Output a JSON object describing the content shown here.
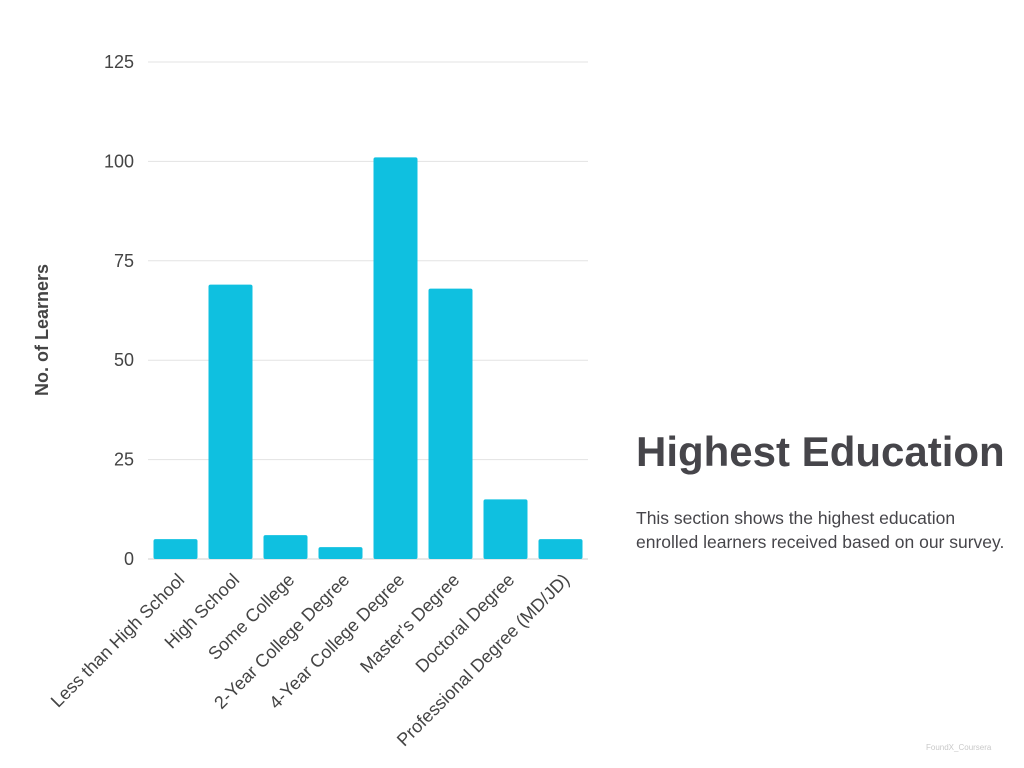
{
  "chart_data": {
    "type": "bar",
    "categories": [
      "Less than High School",
      "High School",
      "Some College",
      "2-Year College Degree",
      "4-Year College Degree",
      "Master's Degree",
      "Doctoral Degree",
      "Professional Degree (MD/JD)"
    ],
    "values": [
      5,
      69,
      6,
      3,
      101,
      68,
      15,
      5
    ],
    "ylabel": "No. of Learners",
    "xlabel": "",
    "ylim": [
      0,
      125
    ],
    "yticks": [
      "0",
      "25",
      "50",
      "75",
      "100",
      "125"
    ],
    "grid": true,
    "bar_color": "#0fc0e0"
  },
  "side": {
    "title": "Highest Education",
    "description": "This section shows the highest education enrolled learners received based on our survey."
  },
  "watermark": "FoundX_Coursera",
  "colors": {
    "bar": "#0fc0e0",
    "title_text": "#46454a",
    "tick_text": "#444444"
  }
}
